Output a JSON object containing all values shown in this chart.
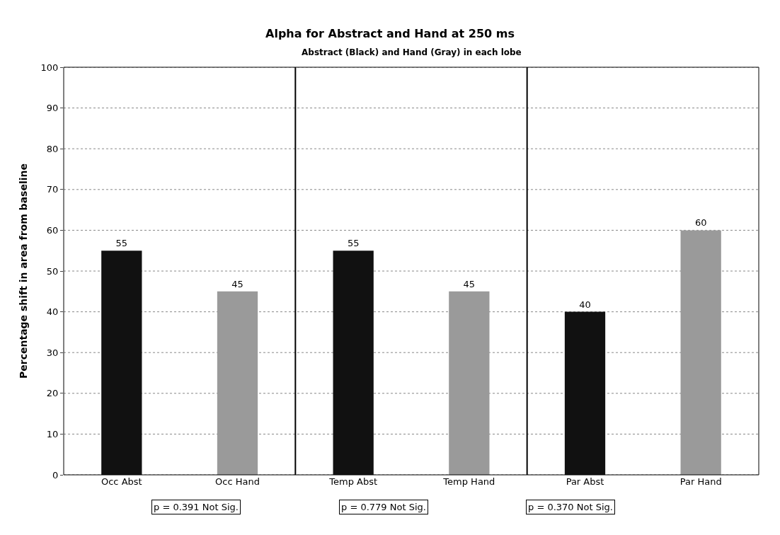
{
  "chart_data": {
    "type": "bar",
    "title": "Alpha for Abstract and Hand at 250 ms",
    "subtitle": "Abstract (Black) and Hand (Gray) in each lobe",
    "ylabel": "Percentage shift in area from baseline",
    "categories": [
      "Occ Abst",
      "Occ Hand",
      "Temp Abst",
      "Temp Hand",
      "Par Abst",
      "Par Hand"
    ],
    "values": [
      55,
      45,
      55,
      45,
      40,
      60
    ],
    "colors": [
      "#111111",
      "#9a9a9a",
      "#111111",
      "#9a9a9a",
      "#111111",
      "#9a9a9a"
    ],
    "ylim": [
      0,
      100
    ],
    "yticks": [
      0,
      10,
      20,
      30,
      40,
      50,
      60,
      70,
      80,
      90,
      100
    ],
    "grid": "y",
    "data_labels": true,
    "annotations": [
      "p = 0.391 Not Sig.",
      "p = 0.779 Not Sig.",
      "p = 0.370 Not Sig."
    ]
  }
}
